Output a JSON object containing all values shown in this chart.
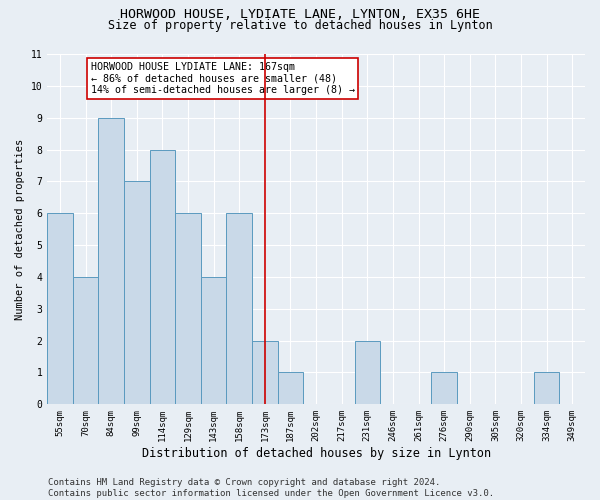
{
  "title": "HORWOOD HOUSE, LYDIATE LANE, LYNTON, EX35 6HE",
  "subtitle": "Size of property relative to detached houses in Lynton",
  "xlabel": "Distribution of detached houses by size in Lynton",
  "ylabel": "Number of detached properties",
  "categories": [
    "55sqm",
    "70sqm",
    "84sqm",
    "99sqm",
    "114sqm",
    "129sqm",
    "143sqm",
    "158sqm",
    "173sqm",
    "187sqm",
    "202sqm",
    "217sqm",
    "231sqm",
    "246sqm",
    "261sqm",
    "276sqm",
    "290sqm",
    "305sqm",
    "320sqm",
    "334sqm",
    "349sqm"
  ],
  "values": [
    6,
    4,
    9,
    7,
    8,
    6,
    4,
    6,
    2,
    1,
    0,
    0,
    2,
    0,
    0,
    1,
    0,
    0,
    0,
    1,
    0
  ],
  "bar_color": "#c9d9e8",
  "bar_edge_color": "#5a9abf",
  "highlight_index": 8,
  "highlight_line_color": "#cc0000",
  "ylim": [
    0,
    11
  ],
  "yticks": [
    0,
    1,
    2,
    3,
    4,
    5,
    6,
    7,
    8,
    9,
    10,
    11
  ],
  "annotation_text": "HORWOOD HOUSE LYDIATE LANE: 167sqm\n← 86% of detached houses are smaller (48)\n14% of semi-detached houses are larger (8) →",
  "annotation_box_color": "#cc0000",
  "footer_line1": "Contains HM Land Registry data © Crown copyright and database right 2024.",
  "footer_line2": "Contains public sector information licensed under the Open Government Licence v3.0.",
  "background_color": "#e8eef4",
  "grid_color": "#ffffff",
  "title_fontsize": 9.5,
  "subtitle_fontsize": 8.5,
  "xlabel_fontsize": 8.5,
  "ylabel_fontsize": 7.5,
  "tick_fontsize": 6.5,
  "annotation_fontsize": 7.2,
  "footer_fontsize": 6.5
}
